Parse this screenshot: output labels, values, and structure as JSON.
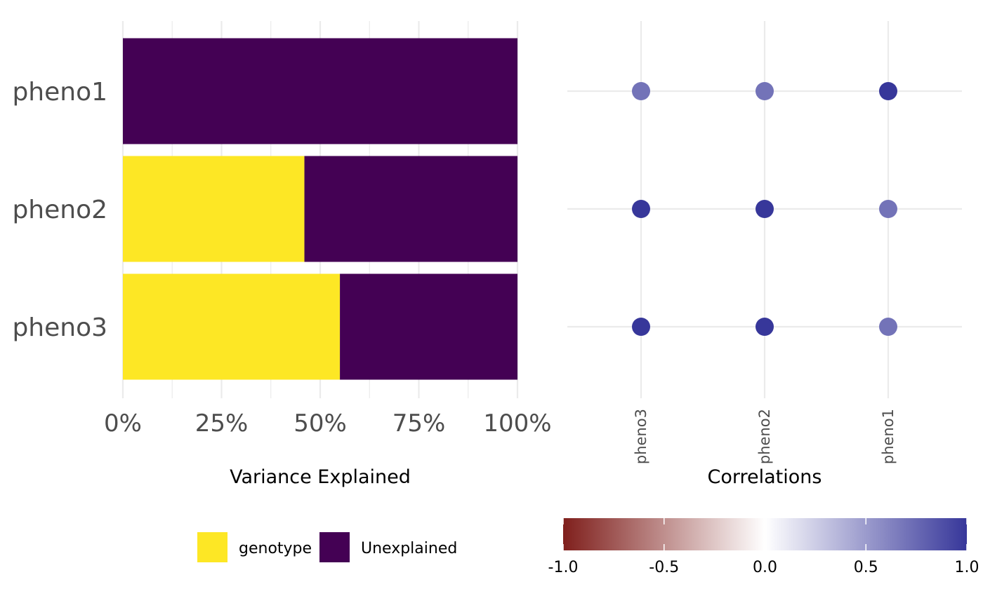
{
  "chart_data": [
    {
      "type": "bar",
      "orientation": "horizontal",
      "stacked": true,
      "categories": [
        "pheno1",
        "pheno2",
        "pheno3"
      ],
      "series": [
        {
          "name": "genotype",
          "values": [
            0,
            0.46,
            0.55
          ]
        },
        {
          "name": "Unexplained",
          "values": [
            1.0,
            0.54,
            0.45
          ]
        }
      ],
      "xlabel": "Variance Explained",
      "ylabel": "",
      "xlim": [
        0,
        1
      ],
      "xticks": [
        0,
        0.25,
        0.5,
        0.75,
        1.0
      ],
      "xtick_labels": [
        "0%",
        "25%",
        "50%",
        "75%",
        "100%"
      ],
      "grid": true,
      "legend": "bottom",
      "colors": {
        "genotype": "#FDE725",
        "Unexplained": "#440154"
      }
    },
    {
      "type": "scatter",
      "title": "",
      "xlabel": "Correlations",
      "x_categories": [
        "pheno3",
        "pheno2",
        "pheno1"
      ],
      "y_categories": [
        "pheno1",
        "pheno2",
        "pheno3"
      ],
      "points": [
        {
          "x": "pheno3",
          "y": "pheno1",
          "value": 0.7
        },
        {
          "x": "pheno2",
          "y": "pheno1",
          "value": 0.7
        },
        {
          "x": "pheno1",
          "y": "pheno1",
          "value": 1.0
        },
        {
          "x": "pheno3",
          "y": "pheno2",
          "value": 1.0
        },
        {
          "x": "pheno2",
          "y": "pheno2",
          "value": 1.0
        },
        {
          "x": "pheno1",
          "y": "pheno2",
          "value": 0.7
        },
        {
          "x": "pheno3",
          "y": "pheno3",
          "value": 1.0
        },
        {
          "x": "pheno2",
          "y": "pheno3",
          "value": 1.0
        },
        {
          "x": "pheno1",
          "y": "pheno3",
          "value": 0.7
        }
      ],
      "colorbar": {
        "range": [
          -1.0,
          1.0
        ],
        "ticks": [
          -1.0,
          -0.5,
          0.0,
          0.5,
          1.0
        ],
        "tick_labels": [
          "-1.0",
          "-0.5",
          "0.0",
          "0.5",
          "1.0"
        ],
        "low_color": "#7F1F1C",
        "mid_color": "#FFFFFF",
        "high_color": "#37379A"
      },
      "grid": true,
      "legend": "bottom"
    }
  ]
}
